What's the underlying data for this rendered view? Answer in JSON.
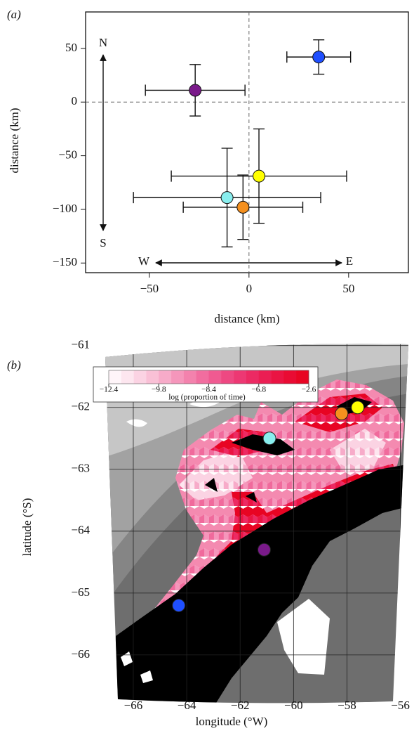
{
  "chart_data": [
    {
      "type": "scatter",
      "label": "(a)",
      "xlabel": "distance (km)",
      "ylabel": "distance (km)",
      "xlim": [
        -82,
        80
      ],
      "ylim": [
        -159,
        84
      ],
      "xticks": [
        {
          "value": -50,
          "label": "−50"
        },
        0,
        50
      ],
      "yticks": [
        50,
        0,
        {
          "value": -50,
          "label": "−50"
        },
        {
          "value": -100,
          "label": "−100"
        },
        {
          "value": -150,
          "label": "−150"
        }
      ],
      "x": [
        35,
        -27,
        5,
        -11,
        -3
      ],
      "values": [
        42,
        11,
        -69,
        -89,
        -98
      ],
      "xerr": [
        16,
        25,
        44,
        47,
        30
      ],
      "yerr": [
        16,
        24,
        44,
        46,
        30
      ],
      "colors": [
        "#1f4fff",
        "#7a1a8a",
        "#ffff00",
        "#88eeee",
        "#f5901e"
      ],
      "annotations": [
        "N",
        "S",
        "W",
        "E"
      ]
    },
    {
      "type": "map",
      "label": "(b)",
      "xlabel": "longitude (°W)",
      "ylabel": "latitude (°S)",
      "xlim": [
        -67.05,
        -55.7
      ],
      "ylim": [
        -66.66,
        -60.89
      ],
      "xticks": [
        {
          "value": -66,
          "label": "−66"
        },
        {
          "value": -64,
          "label": "−64"
        },
        {
          "value": -62,
          "label": "−62"
        },
        {
          "value": -60,
          "label": "−60"
        },
        {
          "value": -58,
          "label": "−58"
        },
        {
          "value": -56,
          "label": "−56"
        }
      ],
      "yticks": [
        {
          "value": -61,
          "label": "−61"
        },
        {
          "value": -62,
          "label": "−62"
        },
        {
          "value": -63,
          "label": "−63"
        },
        {
          "value": -64,
          "label": "−64"
        },
        {
          "value": -65,
          "label": "−65"
        },
        {
          "value": -66,
          "label": "−66"
        }
      ],
      "x": [
        -64.3,
        -61.1,
        -57.6,
        -60.9,
        -58.2
      ],
      "values": [
        -65.2,
        -64.3,
        -62.0,
        -62.5,
        -62.1
      ],
      "colors": [
        "#1f4fff",
        "#7a1a8a",
        "#ffff00",
        "#88eeee",
        "#f5901e"
      ],
      "colorbar": {
        "label": "log (proportion of time)",
        "ticks": [
          {
            "value": -12.4,
            "label": "−12.4"
          },
          {
            "value": -9.8,
            "label": "−9.8"
          },
          {
            "value": -8.4,
            "label": "−8.4"
          },
          {
            "value": -6.8,
            "label": "−6.8"
          },
          {
            "value": -2.6,
            "label": "−2.6"
          }
        ],
        "colors": [
          "#fff5f9",
          "#fde6ef",
          "#fbd3e3",
          "#f9c0d6",
          "#f7abc9",
          "#f596bb",
          "#f382ad",
          "#f16d9f",
          "#f05a91",
          "#ee4882",
          "#ed3873",
          "#ec2a63",
          "#eb1e53",
          "#ea1443",
          "#e90b33",
          "#e80423"
        ]
      }
    }
  ]
}
